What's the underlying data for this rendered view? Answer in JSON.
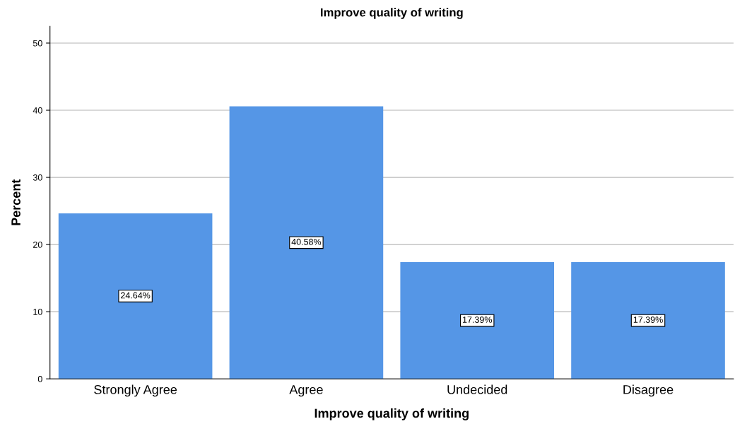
{
  "chart_data": {
    "type": "bar",
    "title": "Improve quality of writing",
    "xlabel": "Improve quality of writing",
    "ylabel": "Percent",
    "categories": [
      "Strongly Agree",
      "Agree",
      "Undecided",
      "Disagree"
    ],
    "values": [
      24.64,
      40.58,
      17.39,
      17.39
    ],
    "value_labels": [
      "24.64%",
      "40.58%",
      "17.39%",
      "17.39%"
    ],
    "color": "#5596e6",
    "ylim": [
      0,
      52.5
    ],
    "yticks": [
      0,
      10,
      20,
      30,
      40,
      50
    ],
    "grid": "y",
    "legend": false
  }
}
